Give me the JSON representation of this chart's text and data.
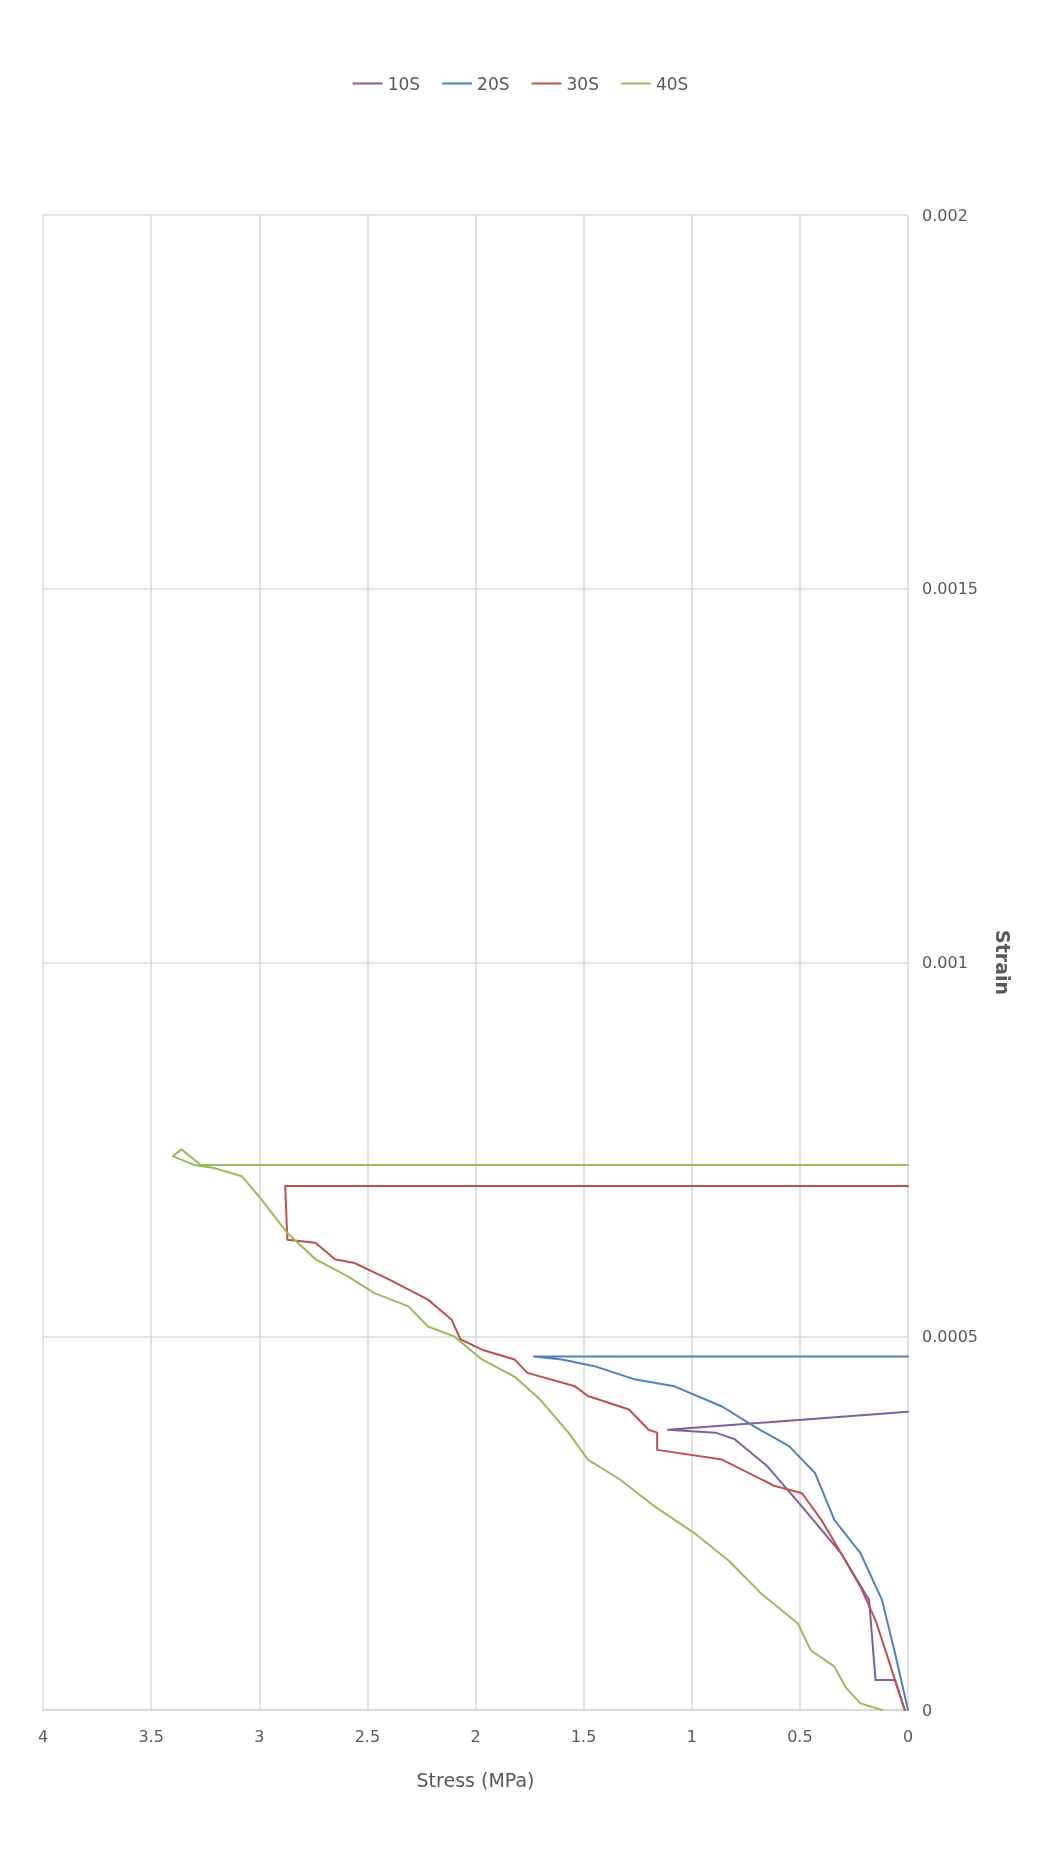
{
  "chart_data": {
    "type": "line",
    "xlabel": "Stress (MPa)",
    "ylabel": "Strain",
    "xlim": [
      4,
      0
    ],
    "xticks": [
      0,
      0.5,
      1,
      1.5,
      2,
      2.5,
      3,
      3.5,
      4
    ],
    "ylim": [
      0,
      0.002
    ],
    "yticks": [
      0,
      0.0005,
      0.001,
      0.0015,
      0.002
    ],
    "grid": true,
    "legend": "top",
    "marker": "none",
    "line_style": "solid",
    "series": [
      {
        "name": "10S",
        "color": "#7f5fa0",
        "values": [
          0,
          4e-05,
          4e-05,
          0.000147,
          0.00021,
          0.000272,
          0.000326,
          0.000362,
          0.000371,
          0.000375,
          0.000399
        ],
        "x": [
          0.015,
          0.06,
          0.15,
          0.18,
          0.31,
          0.49,
          0.65,
          0.8,
          0.89,
          1.11,
          0
        ]
      },
      {
        "name": "20S",
        "color": "#4f81bd",
        "values": [
          0,
          7.6e-05,
          0.000147,
          0.00021,
          0.000254,
          0.000317,
          0.000353,
          0.000379,
          0.000406,
          0.000433,
          0.000442,
          0.00046,
          0.000469,
          0.000473,
          0.000473
        ],
        "x": [
          0,
          0.06,
          0.12,
          0.22,
          0.34,
          0.43,
          0.55,
          0.71,
          0.86,
          1.08,
          1.26,
          1.45,
          1.6,
          1.73,
          0
        ]
      },
      {
        "name": "30S",
        "color": "#c0504d",
        "values": [
          0,
          3.1e-05,
          6.7e-05,
          0.00012,
          0.000165,
          0.00021,
          0.000254,
          0.00029,
          0.0003,
          0.000335,
          0.000348,
          0.000371,
          0.000375,
          0.000402,
          0.00042,
          0.000433,
          0.000451,
          0.000469,
          0.000482,
          0.000496,
          0.000522,
          0.000549,
          0.000576,
          0.000598,
          0.000603,
          0.000625,
          0.000629,
          0.000701,
          0.000701
        ],
        "x": [
          0.015,
          0.05,
          0.09,
          0.15,
          0.22,
          0.31,
          0.4,
          0.49,
          0.62,
          0.86,
          1.16,
          1.16,
          1.2,
          1.29,
          1.48,
          1.54,
          1.76,
          1.82,
          1.97,
          2.07,
          2.11,
          2.22,
          2.4,
          2.56,
          2.65,
          2.74,
          2.87,
          2.88,
          0
        ]
      },
      {
        "name": "40S",
        "color": "#9bbb59",
        "values": [
          0,
          8.9e-06,
          3.1e-05,
          5.8e-05,
          8e-05,
          0.000116,
          0.000156,
          0.0002,
          0.000237,
          0.000272,
          0.000308,
          0.000335,
          0.000371,
          0.000415,
          0.000446,
          0.000469,
          0.0005,
          0.000513,
          0.00054,
          0.000558,
          0.00058,
          0.000603,
          0.000638,
          0.000683,
          0.000714,
          0.000725,
          0.000729,
          0.000741,
          0.00075,
          0.000729,
          0.000729
        ],
        "x": [
          0.12,
          0.22,
          0.29,
          0.34,
          0.45,
          0.51,
          0.68,
          0.83,
          0.99,
          1.17,
          1.33,
          1.48,
          1.57,
          1.7,
          1.82,
          1.97,
          2.1,
          2.22,
          2.31,
          2.47,
          2.59,
          2.74,
          2.87,
          2.99,
          3.08,
          3.21,
          3.3,
          3.4,
          3.36,
          3.27,
          0
        ]
      }
    ]
  }
}
